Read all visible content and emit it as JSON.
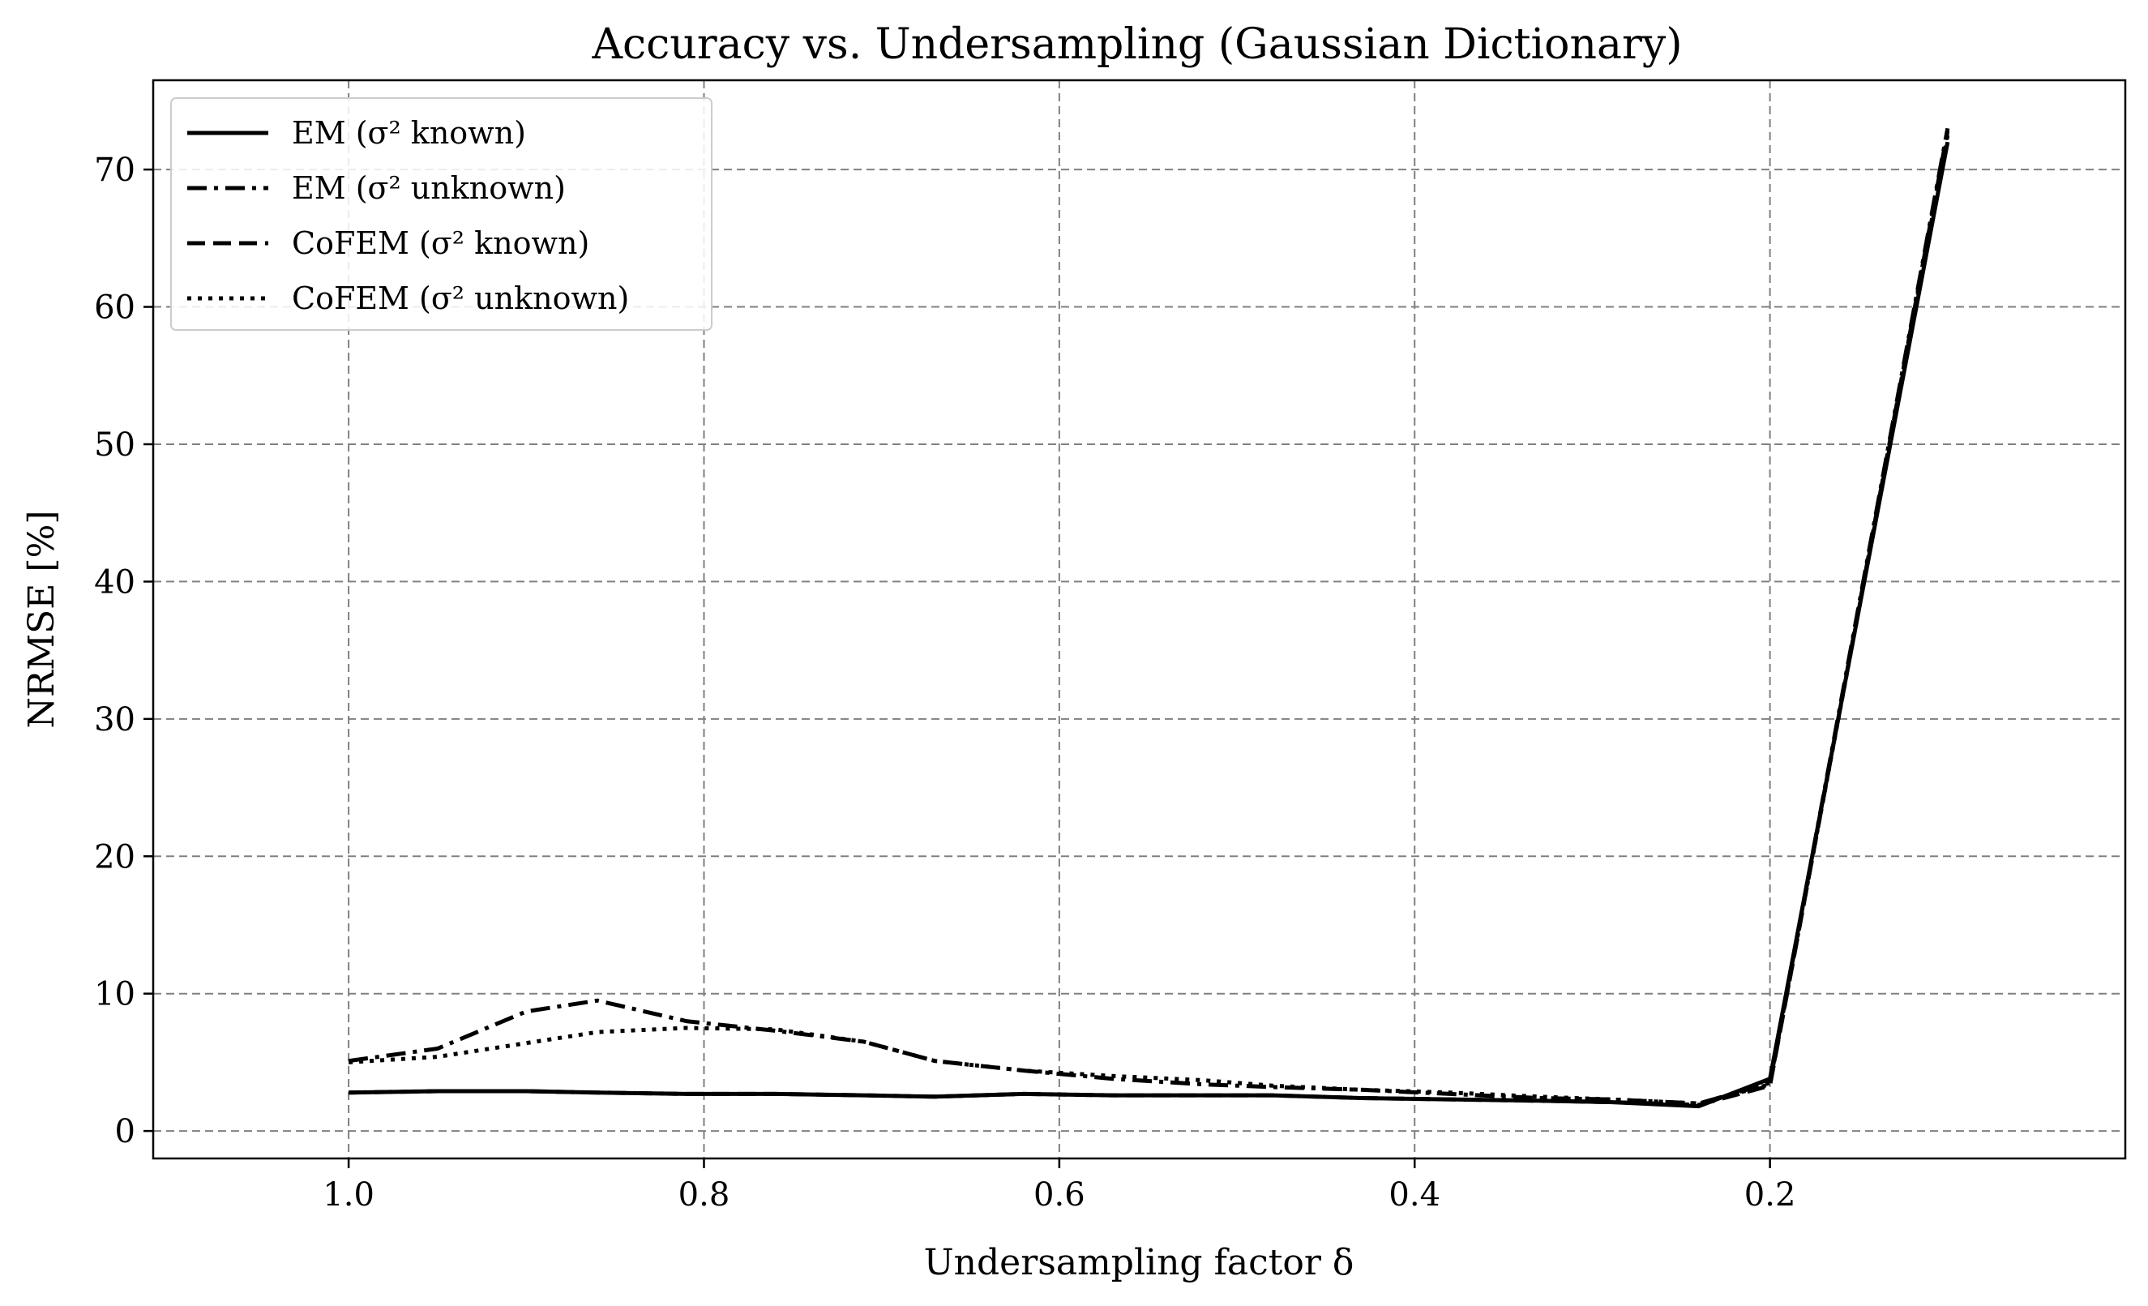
{
  "chart_data": {
    "type": "line",
    "title": "Accuracy vs. Undersampling (Gaussian Dictionary)",
    "xlabel": "Undersampling factor δ",
    "ylabel": "NRMSE [%]",
    "xlim": [
      1.11,
      -0.0
    ],
    "ylim": [
      -2,
      76.5
    ],
    "x_reversed": true,
    "xticks": [
      1.0,
      0.8,
      0.6,
      0.4,
      0.2
    ],
    "xtick_labels": [
      "1.0",
      "0.8",
      "0.6",
      "0.4",
      "0.2"
    ],
    "yticks": [
      0,
      10,
      20,
      30,
      40,
      50,
      60,
      70
    ],
    "ytick_labels": [
      "0",
      "10",
      "20",
      "30",
      "40",
      "50",
      "60",
      "70"
    ],
    "grid": true,
    "legend_position": "top-left",
    "series": [
      {
        "name": "EM (σ² known)",
        "line_style": "solid",
        "x": [
          1.0,
          0.95,
          0.9,
          0.86,
          0.81,
          0.76,
          0.71,
          0.67,
          0.62,
          0.57,
          0.52,
          0.48,
          0.43,
          0.38,
          0.33,
          0.29,
          0.24,
          0.2,
          0.1
        ],
        "y": [
          2.8,
          2.9,
          2.9,
          2.8,
          2.7,
          2.7,
          2.6,
          2.5,
          2.7,
          2.6,
          2.6,
          2.6,
          2.4,
          2.3,
          2.2,
          2.1,
          1.8,
          3.8,
          72.0
        ]
      },
      {
        "name": "EM (σ² unknown)",
        "line_style": "dashdot",
        "x": [
          1.0,
          0.95,
          0.9,
          0.86,
          0.81,
          0.76,
          0.71,
          0.67,
          0.62,
          0.57,
          0.52,
          0.48,
          0.43,
          0.38,
          0.33,
          0.29,
          0.24,
          0.2,
          0.1
        ],
        "y": [
          5.1,
          6.0,
          8.7,
          9.5,
          8.0,
          7.3,
          6.5,
          5.1,
          4.4,
          3.8,
          3.4,
          3.2,
          3.0,
          2.7,
          2.4,
          2.3,
          2.0,
          3.5,
          73.0
        ]
      },
      {
        "name": "CoFEM (σ² known)",
        "line_style": "dashed",
        "x": [
          1.0,
          0.95,
          0.9,
          0.86,
          0.81,
          0.76,
          0.71,
          0.67,
          0.62,
          0.57,
          0.52,
          0.48,
          0.43,
          0.38,
          0.33,
          0.29,
          0.24,
          0.2,
          0.1
        ],
        "y": [
          2.8,
          2.9,
          2.9,
          2.8,
          2.7,
          2.7,
          2.6,
          2.5,
          2.7,
          2.6,
          2.6,
          2.6,
          2.4,
          2.3,
          2.2,
          2.1,
          1.9,
          3.3,
          72.8
        ]
      },
      {
        "name": "CoFEM (σ² unknown)",
        "line_style": "dotted",
        "x": [
          1.0,
          0.95,
          0.9,
          0.86,
          0.81,
          0.76,
          0.71,
          0.67,
          0.62,
          0.57,
          0.52,
          0.48,
          0.43,
          0.38,
          0.33,
          0.29,
          0.24,
          0.2,
          0.1
        ],
        "y": [
          5.0,
          5.4,
          6.4,
          7.2,
          7.5,
          7.4,
          6.5,
          5.1,
          4.4,
          4.0,
          3.7,
          3.3,
          3.0,
          2.8,
          2.5,
          2.3,
          2.0,
          3.4,
          72.5
        ]
      }
    ]
  },
  "colors": {
    "line": "#000000",
    "grid": "#808080",
    "background": "#ffffff"
  }
}
